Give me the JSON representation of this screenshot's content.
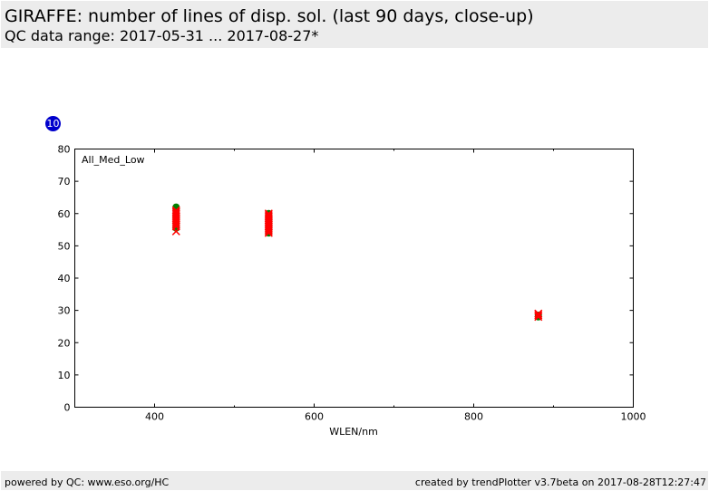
{
  "header": {
    "title": "GIRAFFE: number of lines of disp. sol. (last 90 days, close-up)",
    "subtitle": "QC data range: 2017-05-31 ... 2017-08-27*"
  },
  "badge": {
    "label": "10",
    "color": "#0000cc"
  },
  "footer": {
    "left": "powered by QC: www.eso.org/HC",
    "right": "created by trendPlotter v3.7beta on 2017-08-28T12:27:47"
  },
  "chart_data": {
    "type": "scatter",
    "title": "",
    "panel_label": "All_Med_Low",
    "xlabel": "WLEN/nm",
    "ylabel": "",
    "xlim": [
      300,
      1000
    ],
    "ylim": [
      0,
      80
    ],
    "x_ticks": [
      400,
      600,
      800,
      1000
    ],
    "x_minor_ticks": [
      500,
      700,
      900
    ],
    "y_ticks": [
      0,
      10,
      20,
      30,
      40,
      50,
      60,
      70,
      80
    ],
    "grid": false,
    "series": [
      {
        "marker": "circle",
        "color": "#008000",
        "points": [
          [
            427,
            62
          ],
          [
            427,
            61.5
          ],
          [
            427,
            61
          ],
          [
            427,
            60
          ],
          [
            427,
            59
          ],
          [
            427,
            58.5
          ],
          [
            427,
            57
          ],
          [
            427,
            56
          ],
          [
            427,
            55.5
          ],
          [
            543,
            60
          ],
          [
            543,
            59
          ],
          [
            543,
            58
          ],
          [
            543,
            57
          ],
          [
            543,
            56
          ],
          [
            543,
            55
          ],
          [
            543,
            54
          ],
          [
            881,
            28.5
          ],
          [
            881,
            28
          ]
        ]
      },
      {
        "marker": "x",
        "color": "#ff0000",
        "points": [
          [
            427,
            61
          ],
          [
            427,
            60.5
          ],
          [
            427,
            60
          ],
          [
            427,
            59.5
          ],
          [
            427,
            59
          ],
          [
            427,
            58.5
          ],
          [
            427,
            58
          ],
          [
            427,
            57.5
          ],
          [
            427,
            57
          ],
          [
            427,
            56.5
          ],
          [
            427,
            56
          ],
          [
            427,
            54.5
          ],
          [
            543,
            60
          ],
          [
            543,
            59.5
          ],
          [
            543,
            59
          ],
          [
            543,
            58.5
          ],
          [
            543,
            58
          ],
          [
            543,
            57.5
          ],
          [
            543,
            57
          ],
          [
            543,
            56.5
          ],
          [
            543,
            56
          ],
          [
            543,
            55.5
          ],
          [
            543,
            55
          ],
          [
            543,
            54.5
          ],
          [
            543,
            54
          ],
          [
            881,
            29
          ],
          [
            881,
            28.5
          ],
          [
            881,
            28
          ]
        ]
      }
    ]
  }
}
